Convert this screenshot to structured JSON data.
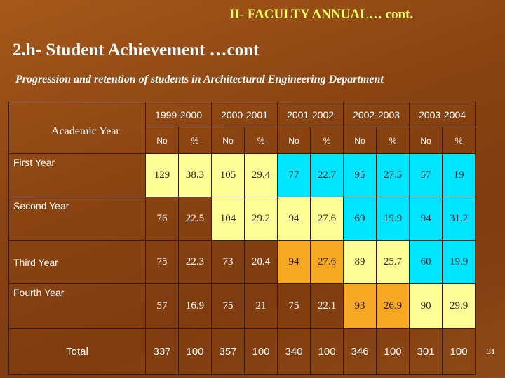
{
  "header": {
    "title": "II- FACULTY ANNUAL… cont."
  },
  "subtitle": "2.h- Student Achievement …cont",
  "caption": "Progression and retention of students in Architectural Engineering Department",
  "table": {
    "corner_label": "Academic Year",
    "years": [
      "1999-2000",
      "2000-2001",
      "2001-2002",
      "2002-2003",
      "2003-2004"
    ],
    "sub_no": "No",
    "sub_pct": "%",
    "rows": [
      {
        "label": "First Year",
        "values": [
          "129",
          "38.3",
          "105",
          "29.4",
          "77",
          "22.7",
          "95",
          "27.5",
          "57",
          "19"
        ]
      },
      {
        "label": "Second Year",
        "values": [
          "76",
          "22.5",
          "104",
          "29.2",
          "94",
          "27.6",
          "69",
          "19.9",
          "94",
          "31.2"
        ]
      },
      {
        "label": "Third Year",
        "values": [
          "75",
          "22.3",
          "73",
          "20.4",
          "94",
          "27.6",
          "89",
          "25.7",
          "60",
          "19.9"
        ]
      },
      {
        "label": "Fourth Year",
        "values": [
          "57",
          "16.9",
          "75",
          "21",
          "75",
          "22.1",
          "93",
          "26.9",
          "90",
          "29.9"
        ]
      }
    ],
    "total": {
      "label": "Total",
      "values": [
        "337",
        "100",
        "357",
        "100",
        "340",
        "100",
        "346",
        "100",
        "301",
        "100"
      ]
    }
  },
  "page_number": "31",
  "colors": {
    "yellow": "#ffff99",
    "cyan": "#00e5ff",
    "orange": "#f7a823"
  }
}
